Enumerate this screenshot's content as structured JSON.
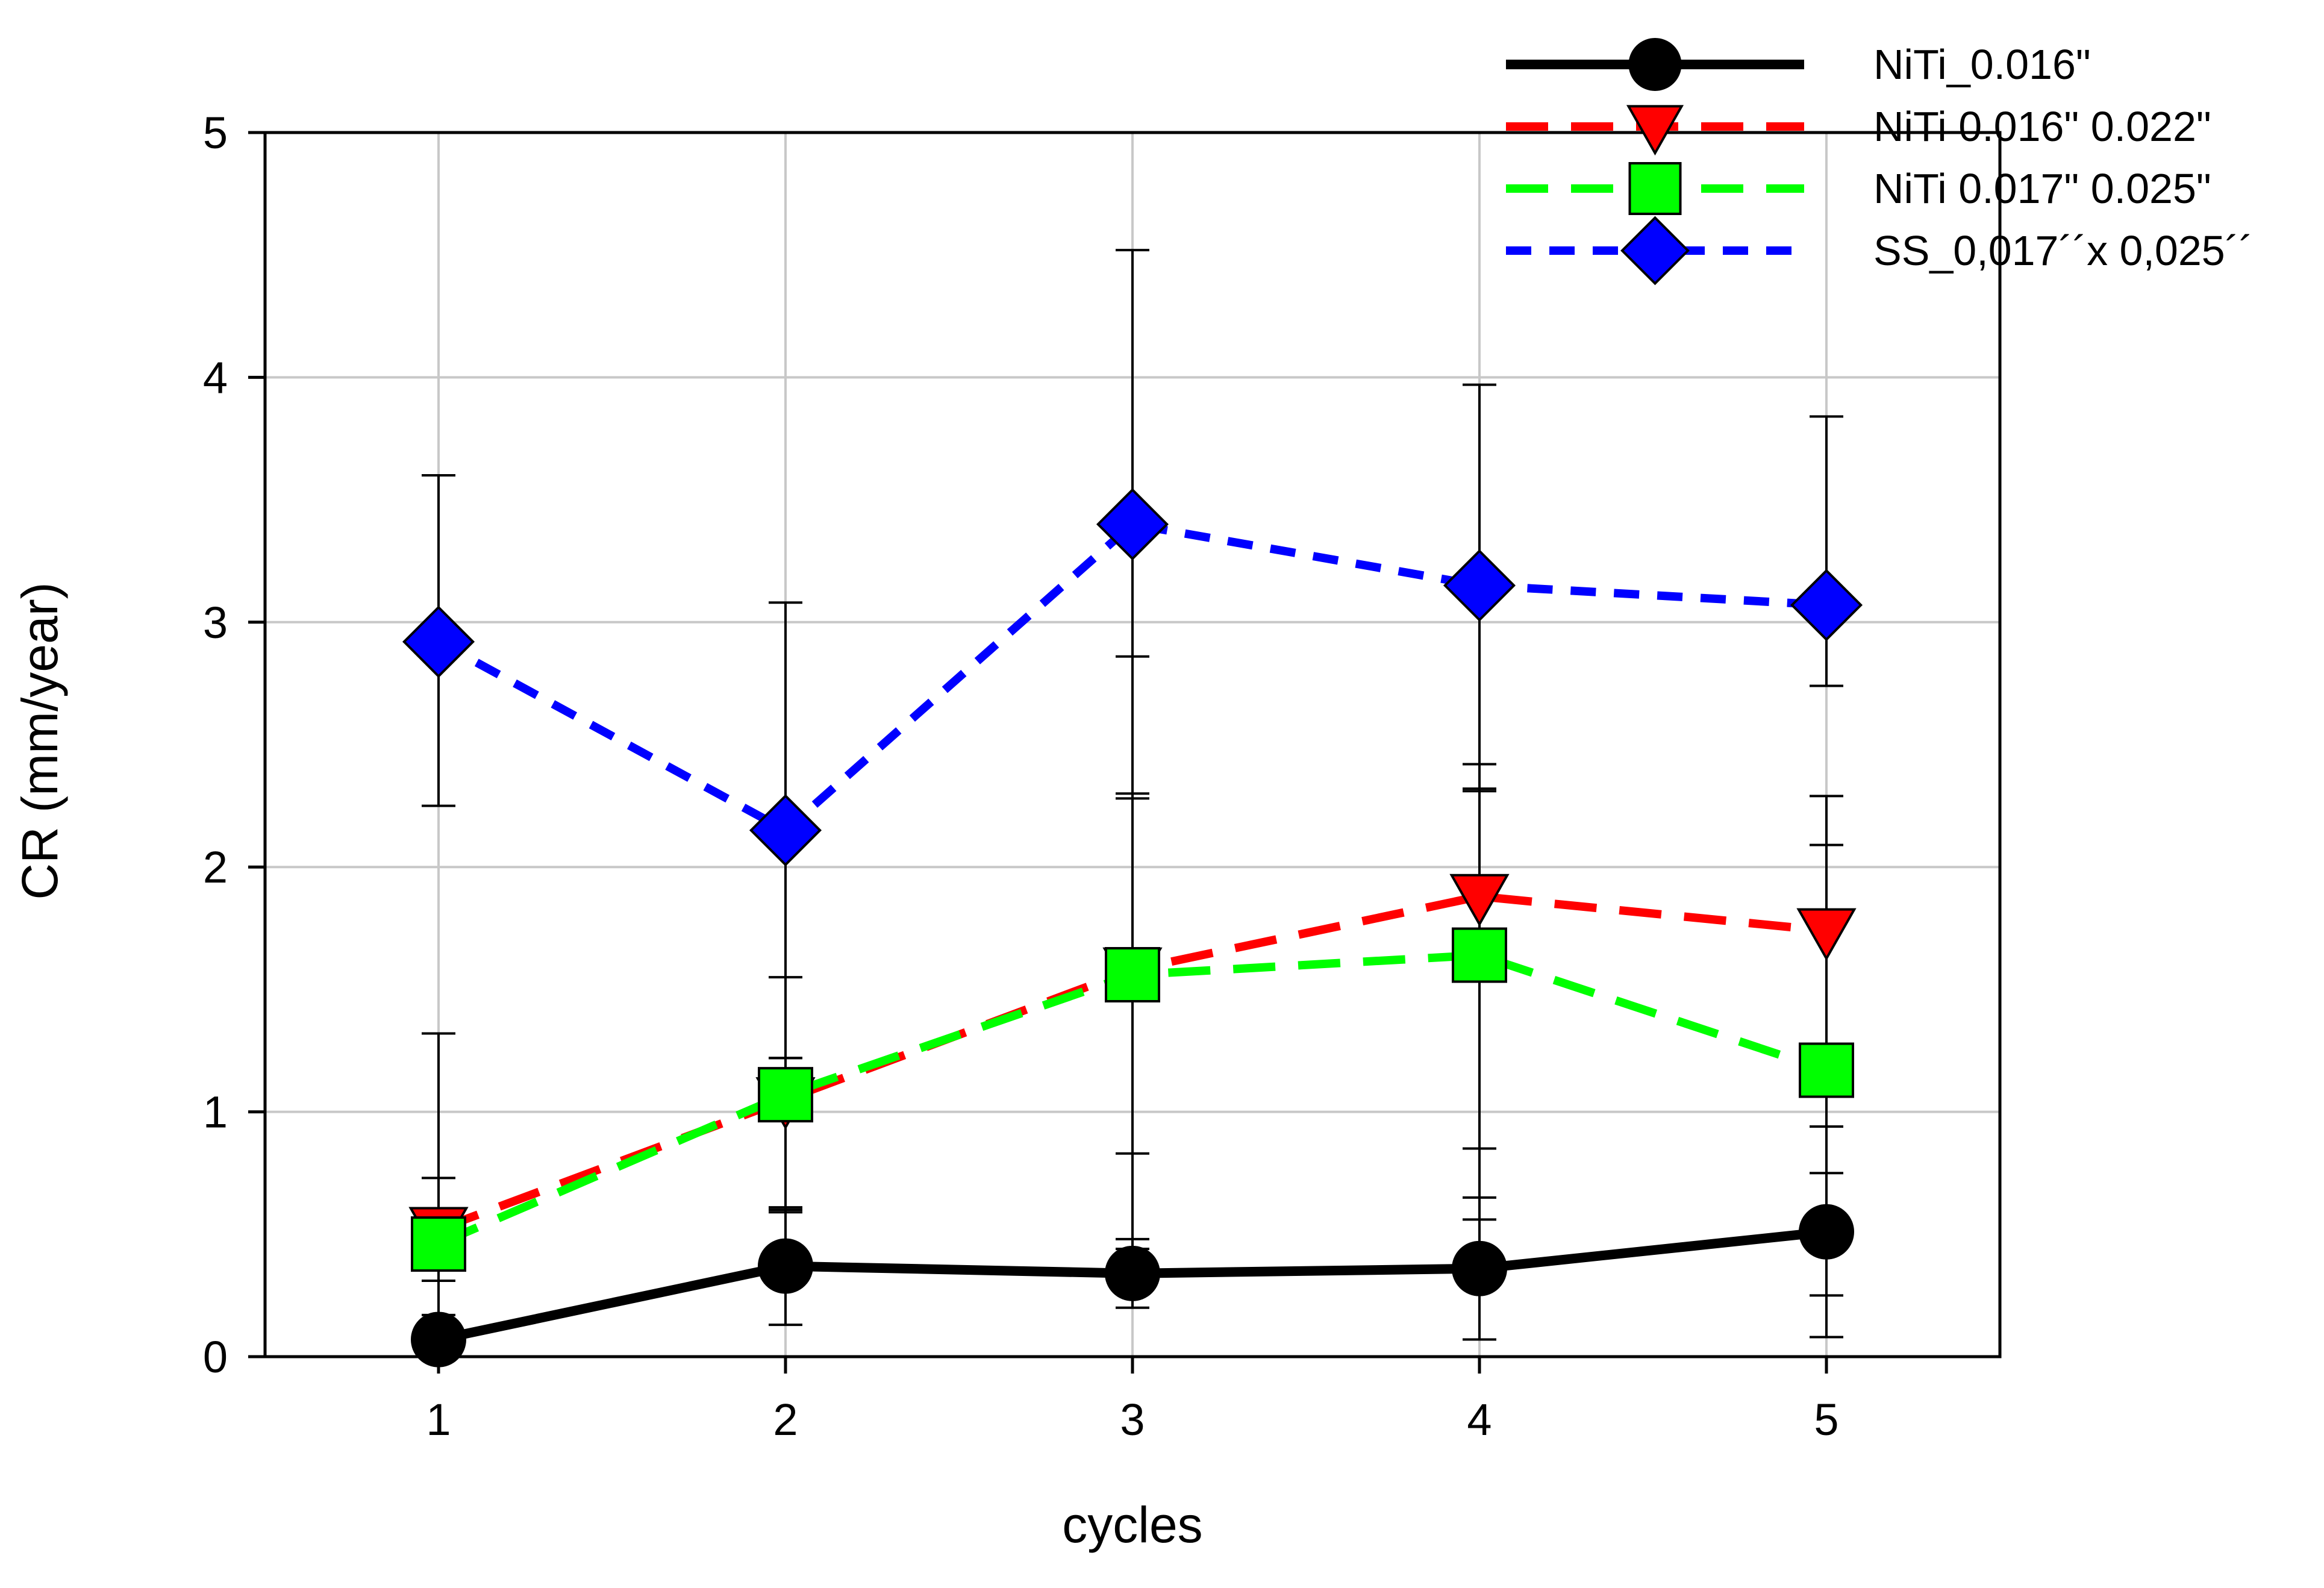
{
  "chart_data": {
    "type": "line",
    "title": "",
    "xlabel": "cycles",
    "ylabel": "CR (mm/year)",
    "x": [
      1,
      2,
      3,
      4,
      5
    ],
    "xlim": [
      0.5,
      5.5
    ],
    "ylim": [
      0,
      5
    ],
    "xticks": [
      "1",
      "2",
      "3",
      "4",
      "5"
    ],
    "yticks": [
      "0",
      "1",
      "2",
      "3",
      "4",
      "5"
    ],
    "grid": true,
    "legend_position": "top-right",
    "series": [
      {
        "name": "NiTi_0.016\"",
        "color": "#000000",
        "line_style": "solid",
        "marker": "circle",
        "values": [
          0.07,
          0.37,
          0.34,
          0.36,
          0.51
        ],
        "error_high": [
          0.17,
          0.61,
          0.48,
          0.65,
          0.94
        ],
        "error_low": [
          0.07,
          0.13,
          0.2,
          0.07,
          0.08
        ]
      },
      {
        "name": "NiTi 0.016\" 0.022\"",
        "color": "#ff0000",
        "line_style": "dashed",
        "marker": "triangle-down",
        "values": [
          0.52,
          1.05,
          1.58,
          1.88,
          1.74
        ],
        "error_high": [
          0.73,
          1.55,
          2.3,
          2.42,
          2.29
        ],
        "error_low": [
          0.31,
          0.59,
          0.83,
          0.56,
          0.25
        ]
      },
      {
        "name": "NiTi 0.017\" 0.025\"",
        "color": "#00ff00",
        "line_style": "dashed",
        "marker": "square",
        "values": [
          0.46,
          1.07,
          1.56,
          1.64,
          1.17
        ],
        "error_high": [
          1.32,
          1.22,
          2.86,
          2.31,
          2.09
        ],
        "error_low": [
          0.0,
          0.6,
          0.44,
          0.85,
          0.75
        ]
      },
      {
        "name": "SS_0,017´´x 0,025´´",
        "color": "#0000ff",
        "line_style": "dotted",
        "marker": "diamond",
        "values": [
          2.92,
          2.15,
          3.4,
          3.15,
          3.07
        ],
        "error_high": [
          3.6,
          3.08,
          4.52,
          3.97,
          3.84
        ],
        "error_low": [
          2.25,
          1.22,
          2.28,
          2.32,
          2.74
        ]
      }
    ]
  }
}
